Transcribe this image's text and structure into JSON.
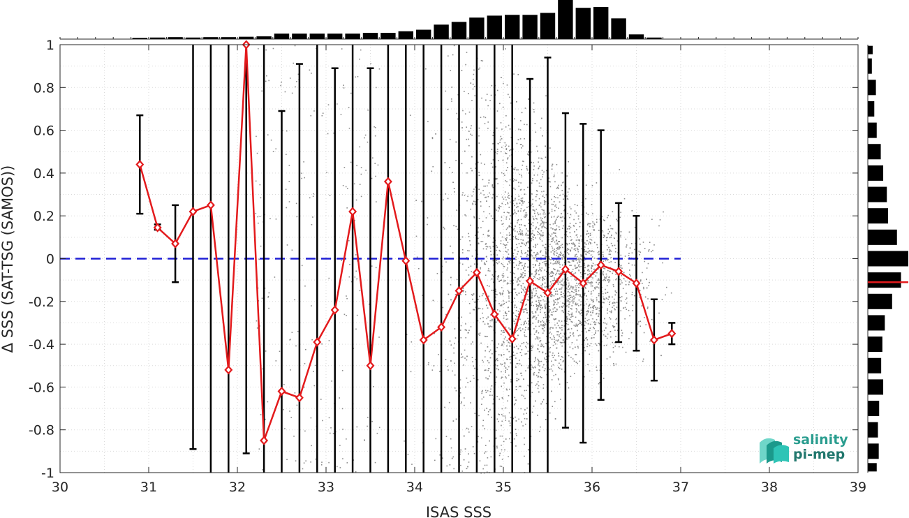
{
  "chart_data": {
    "type": "scatter",
    "xlabel": "ISAS SSS",
    "ylabel": "Δ SSS (SAT-TSG (SAMOS))",
    "xlim": [
      30,
      39
    ],
    "ylim": [
      -1,
      1
    ],
    "x_ticks": [
      "30",
      "31",
      "32",
      "33",
      "34",
      "35",
      "36",
      "37",
      "38",
      "39"
    ],
    "y_ticks": [
      "-1",
      "-0.8",
      "-0.6",
      "-0.4",
      "-0.2",
      "0",
      "0.2",
      "0.4",
      "0.6",
      "0.8",
      "1"
    ],
    "grid": true,
    "zero_line": {
      "y": 0,
      "color": "#1f1fd6",
      "style": "dashed"
    },
    "scatter_color": "#8c8c8c",
    "line_color": "#e31a1c",
    "errorbar_color": "#000000",
    "binned": [
      {
        "x": 30.9,
        "mean": 0.44,
        "low": 0.21,
        "high": 0.67
      },
      {
        "x": 31.1,
        "mean": 0.145,
        "low": 0.135,
        "high": 0.16
      },
      {
        "x": 31.3,
        "mean": 0.07,
        "low": -0.11,
        "high": 0.25
      },
      {
        "x": 31.5,
        "mean": 0.22,
        "low": -0.89,
        "high": 1.0
      },
      {
        "x": 31.7,
        "mean": 0.25,
        "low": -1.0,
        "high": 1.0
      },
      {
        "x": 31.9,
        "mean": -0.52,
        "low": -1.0,
        "high": 1.0
      },
      {
        "x": 32.1,
        "mean": 1.0,
        "low": -0.91,
        "high": 1.0
      },
      {
        "x": 32.3,
        "mean": -0.85,
        "low": -1.0,
        "high": 1.0
      },
      {
        "x": 32.5,
        "mean": -0.62,
        "low": -1.0,
        "high": 0.69
      },
      {
        "x": 32.7,
        "mean": -0.65,
        "low": -1.0,
        "high": 0.91
      },
      {
        "x": 32.9,
        "mean": -0.39,
        "low": -1.0,
        "high": 1.0
      },
      {
        "x": 33.1,
        "mean": -0.24,
        "low": -1.0,
        "high": 0.89
      },
      {
        "x": 33.3,
        "mean": 0.22,
        "low": -1.0,
        "high": 1.0
      },
      {
        "x": 33.5,
        "mean": -0.5,
        "low": -1.0,
        "high": 0.89
      },
      {
        "x": 33.7,
        "mean": 0.36,
        "low": -1.0,
        "high": 1.0
      },
      {
        "x": 33.9,
        "mean": -0.01,
        "low": -1.0,
        "high": 1.0
      },
      {
        "x": 34.1,
        "mean": -0.38,
        "low": -1.0,
        "high": 1.0
      },
      {
        "x": 34.3,
        "mean": -0.32,
        "low": -1.0,
        "high": 1.0
      },
      {
        "x": 34.5,
        "mean": -0.15,
        "low": -1.0,
        "high": 1.0
      },
      {
        "x": 34.7,
        "mean": -0.065,
        "low": -1.0,
        "high": 1.0
      },
      {
        "x": 34.9,
        "mean": -0.26,
        "low": -1.0,
        "high": 1.0
      },
      {
        "x": 35.1,
        "mean": -0.375,
        "low": -1.0,
        "high": 1.0
      },
      {
        "x": 35.3,
        "mean": -0.105,
        "low": -1.0,
        "high": 0.84
      },
      {
        "x": 35.5,
        "mean": -0.16,
        "low": -1.0,
        "high": 0.94
      },
      {
        "x": 35.7,
        "mean": -0.05,
        "low": -0.79,
        "high": 0.68
      },
      {
        "x": 35.9,
        "mean": -0.115,
        "low": -0.86,
        "high": 0.63
      },
      {
        "x": 36.1,
        "mean": -0.03,
        "low": -0.66,
        "high": 0.6
      },
      {
        "x": 36.3,
        "mean": -0.06,
        "low": -0.39,
        "high": 0.26
      },
      {
        "x": 36.5,
        "mean": -0.115,
        "low": -0.43,
        "high": 0.2
      },
      {
        "x": 36.7,
        "mean": -0.38,
        "low": -0.57,
        "high": -0.19
      },
      {
        "x": 36.9,
        "mean": -0.35,
        "low": -0.4,
        "high": -0.3
      }
    ],
    "top_histogram": {
      "x_centers": [
        30.9,
        31.1,
        31.3,
        31.5,
        31.7,
        31.9,
        32.1,
        32.3,
        32.5,
        32.7,
        32.9,
        33.1,
        33.3,
        33.5,
        33.7,
        33.9,
        34.1,
        34.3,
        34.5,
        34.7,
        34.9,
        35.1,
        35.3,
        35.5,
        35.7,
        35.9,
        36.1,
        36.3,
        36.5,
        36.7
      ],
      "relative_counts": [
        0.03,
        0.04,
        0.05,
        0.04,
        0.05,
        0.05,
        0.06,
        0.07,
        0.14,
        0.14,
        0.14,
        0.14,
        0.14,
        0.16,
        0.16,
        0.2,
        0.24,
        0.37,
        0.44,
        0.55,
        0.6,
        0.62,
        0.62,
        0.67,
        1.0,
        0.8,
        0.82,
        0.53,
        0.12,
        0.04
      ]
    },
    "right_histogram": {
      "y_centers": [
        0.975,
        0.9,
        0.8,
        0.7,
        0.6,
        0.5,
        0.4,
        0.3,
        0.2,
        0.1,
        0.0,
        -0.1,
        -0.2,
        -0.3,
        -0.4,
        -0.5,
        -0.6,
        -0.7,
        -0.8,
        -0.9,
        -0.975
      ],
      "relative_counts": [
        0.12,
        0.1,
        0.2,
        0.16,
        0.22,
        0.32,
        0.38,
        0.47,
        0.5,
        0.72,
        1.0,
        0.82,
        0.6,
        0.42,
        0.36,
        0.33,
        0.38,
        0.28,
        0.25,
        0.27,
        0.22
      ],
      "mean_line_y": -0.11
    }
  },
  "logo": {
    "line1": "salinity",
    "line2": "pi-mep",
    "colors": [
      "#2ec4b6",
      "#1b998b",
      "#6fd6c9"
    ]
  }
}
